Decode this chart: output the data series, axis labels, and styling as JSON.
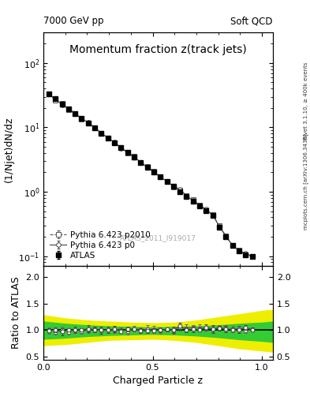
{
  "title": "Momentum fraction z(track jets)",
  "header_left": "7000 GeV pp",
  "header_right": "Soft QCD",
  "ylabel_main": "(1/Njet)dN/dz",
  "ylabel_ratio": "Ratio to ATLAS",
  "xlabel": "Charged Particle z",
  "right_label_top": "Rivet 3.1.10, ≥ 400k events",
  "right_label_bot": "mcplots.cern.ch [arXiv:1306.3436]",
  "watermark": "ATLAS_2011_I919017",
  "atlas_label": "ATLAS",
  "pythia_p0_label": "Pythia 6.423 p0",
  "pythia_p2010_label": "Pythia 6.423 p2010",
  "xlim": [
    0.0,
    1.05
  ],
  "ylim_main": [
    0.07,
    300
  ],
  "ylim_ratio": [
    0.45,
    2.2
  ],
  "color_green": "#33cc33",
  "color_yellow": "#eeee00",
  "background": "#ffffff",
  "tick_fontsize": 8,
  "label_fontsize": 9,
  "title_fontsize": 10
}
